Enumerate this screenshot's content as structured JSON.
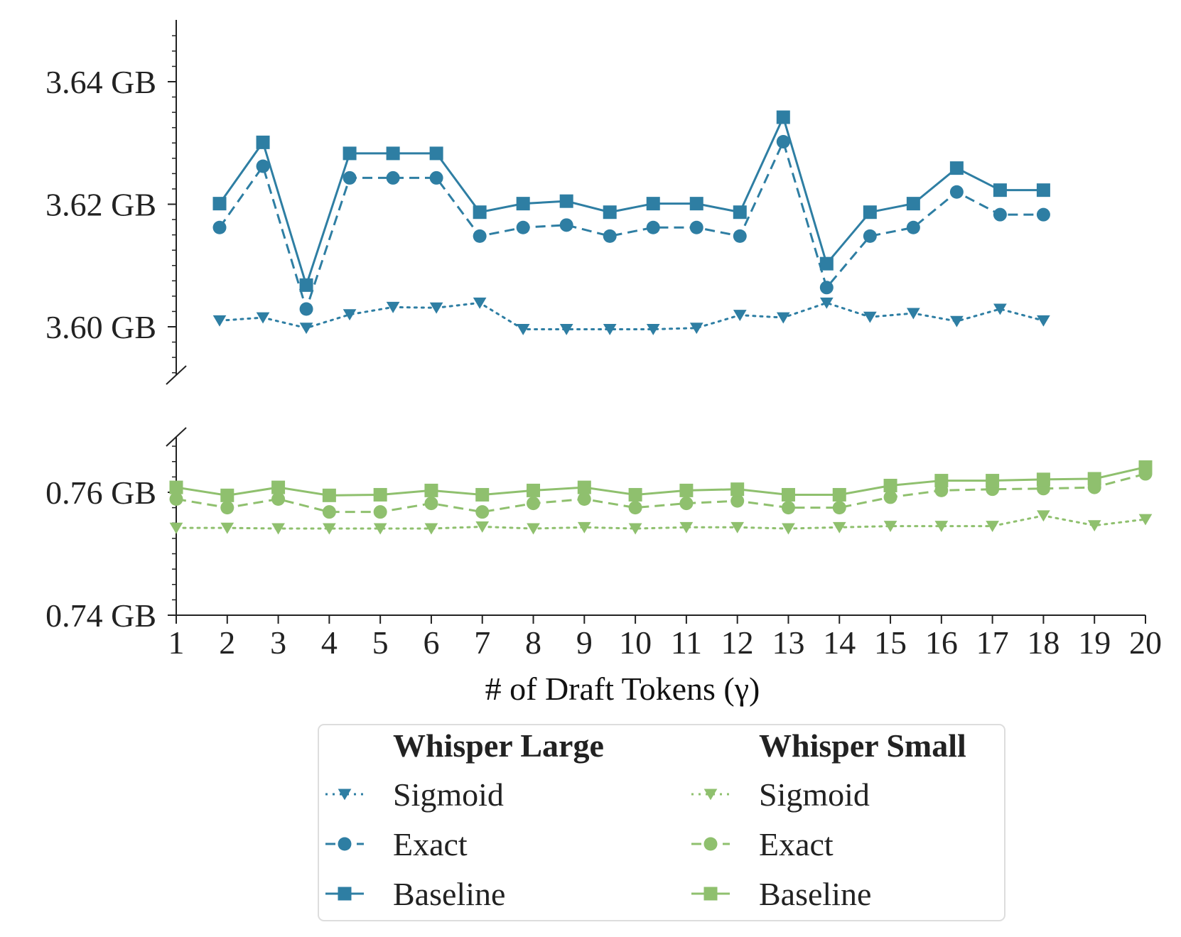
{
  "chart_data": {
    "type": "line",
    "xlabel": "# of Draft Tokens (γ)",
    "x_ticks": [
      "1",
      "2",
      "3",
      "4",
      "5",
      "6",
      "7",
      "8",
      "9",
      "10",
      "11",
      "12",
      "13",
      "14",
      "15",
      "16",
      "17",
      "18",
      "19",
      "20"
    ],
    "xlim": [
      1,
      20
    ],
    "upper_panel": {
      "ylim": [
        3.59,
        3.65
      ],
      "y_ticks": [
        "3.64 GB",
        "3.62 GB",
        "3.60 GB"
      ],
      "y_tick_values": [
        3.64,
        3.62,
        3.6
      ],
      "series": [
        {
          "name": "Whisper Large Sigmoid",
          "marker": "triangle-down",
          "linestyle": "dotted",
          "color": "#2e7ea3",
          "x": [
            1.85,
            2.7,
            3.55,
            4.4,
            5.25,
            6.1,
            6.95,
            7.8,
            8.65,
            9.5,
            10.35,
            11.2,
            12.05,
            12.9,
            13.75,
            14.6,
            15.45,
            16.3,
            17.15,
            18.0
          ],
          "y": [
            3.601,
            3.6015,
            3.5998,
            3.602,
            3.6032,
            3.6031,
            3.6039,
            3.5996,
            3.5996,
            3.5996,
            3.5996,
            3.5998,
            3.6019,
            3.6015,
            3.6039,
            3.6016,
            3.6022,
            3.6009,
            3.6029,
            3.601
          ]
        },
        {
          "name": "Whisper Large Exact",
          "marker": "circle",
          "linestyle": "dashed",
          "color": "#2e7ea3",
          "x": [
            1.85,
            2.7,
            3.55,
            4.4,
            5.25,
            6.1,
            6.95,
            7.8,
            8.65,
            9.5,
            10.35,
            11.2,
            12.05,
            12.9,
            13.75,
            14.6,
            15.45,
            16.3,
            17.15,
            18.0
          ],
          "y": [
            3.6162,
            3.6262,
            3.6029,
            3.6243,
            3.6243,
            3.6243,
            3.6148,
            3.6162,
            3.6166,
            3.6148,
            3.6162,
            3.6162,
            3.6148,
            3.6302,
            3.6064,
            3.6148,
            3.6162,
            3.622,
            3.6183,
            3.6183
          ]
        },
        {
          "name": "Whisper Large Baseline",
          "marker": "square",
          "linestyle": "solid",
          "color": "#2e7ea3",
          "x": [
            1.85,
            2.7,
            3.55,
            4.4,
            5.25,
            6.1,
            6.95,
            7.8,
            8.65,
            9.5,
            10.35,
            11.2,
            12.05,
            12.9,
            13.75,
            14.6,
            15.45,
            16.3,
            17.15,
            18.0
          ],
          "y": [
            3.6201,
            3.6301,
            3.6068,
            3.6283,
            3.6283,
            3.6283,
            3.6187,
            3.6201,
            3.6205,
            3.6187,
            3.6201,
            3.6201,
            3.6187,
            3.6342,
            3.6103,
            3.6187,
            3.6201,
            3.6259,
            3.6223,
            3.6223
          ]
        }
      ]
    },
    "lower_panel": {
      "ylim": [
        0.74,
        0.769
      ],
      "y_ticks": [
        "0.76 GB",
        "0.74 GB"
      ],
      "y_tick_values": [
        0.76,
        0.74
      ],
      "series": [
        {
          "name": "Whisper Small Sigmoid",
          "marker": "triangle-down",
          "linestyle": "dotted",
          "color": "#8fc06e",
          "x": [
            1,
            2,
            3,
            4,
            5,
            6,
            7,
            8,
            9,
            10,
            11,
            12,
            13,
            14,
            15,
            16,
            17,
            18,
            19,
            20
          ],
          "y": [
            0.7542,
            0.7542,
            0.7541,
            0.7541,
            0.7541,
            0.7541,
            0.7544,
            0.7541,
            0.7543,
            0.7541,
            0.7543,
            0.7543,
            0.7541,
            0.7543,
            0.7545,
            0.7545,
            0.7545,
            0.7562,
            0.7546,
            0.7556
          ]
        },
        {
          "name": "Whisper Small Exact",
          "marker": "circle",
          "linestyle": "dashed",
          "color": "#8fc06e",
          "x": [
            1,
            2,
            3,
            4,
            5,
            6,
            7,
            8,
            9,
            10,
            11,
            12,
            13,
            14,
            15,
            16,
            17,
            18,
            19,
            20
          ],
          "y": [
            0.7589,
            0.7575,
            0.7589,
            0.7568,
            0.7568,
            0.7582,
            0.7568,
            0.7582,
            0.7589,
            0.7575,
            0.7582,
            0.7586,
            0.7575,
            0.7575,
            0.7592,
            0.7603,
            0.7605,
            0.7606,
            0.7608,
            0.763
          ]
        },
        {
          "name": "Whisper Small Baseline",
          "marker": "square",
          "linestyle": "solid",
          "color": "#8fc06e",
          "x": [
            1,
            2,
            3,
            4,
            5,
            6,
            7,
            8,
            9,
            10,
            11,
            12,
            13,
            14,
            15,
            16,
            17,
            18,
            19,
            20
          ],
          "y": [
            0.7608,
            0.7595,
            0.7608,
            0.7595,
            0.7596,
            0.7603,
            0.7596,
            0.7603,
            0.7608,
            0.7596,
            0.7603,
            0.7605,
            0.7596,
            0.7596,
            0.7611,
            0.7619,
            0.7619,
            0.7621,
            0.7622,
            0.7641
          ]
        }
      ]
    },
    "legend": {
      "placement": "bottom-center",
      "groups": [
        {
          "title": "Whisper Large",
          "color": "#2e7ea3",
          "entries": [
            "Sigmoid",
            "Exact",
            "Baseline"
          ]
        },
        {
          "title": "Whisper Small",
          "color": "#8fc06e",
          "entries": [
            "Sigmoid",
            "Exact",
            "Baseline"
          ]
        }
      ]
    }
  }
}
